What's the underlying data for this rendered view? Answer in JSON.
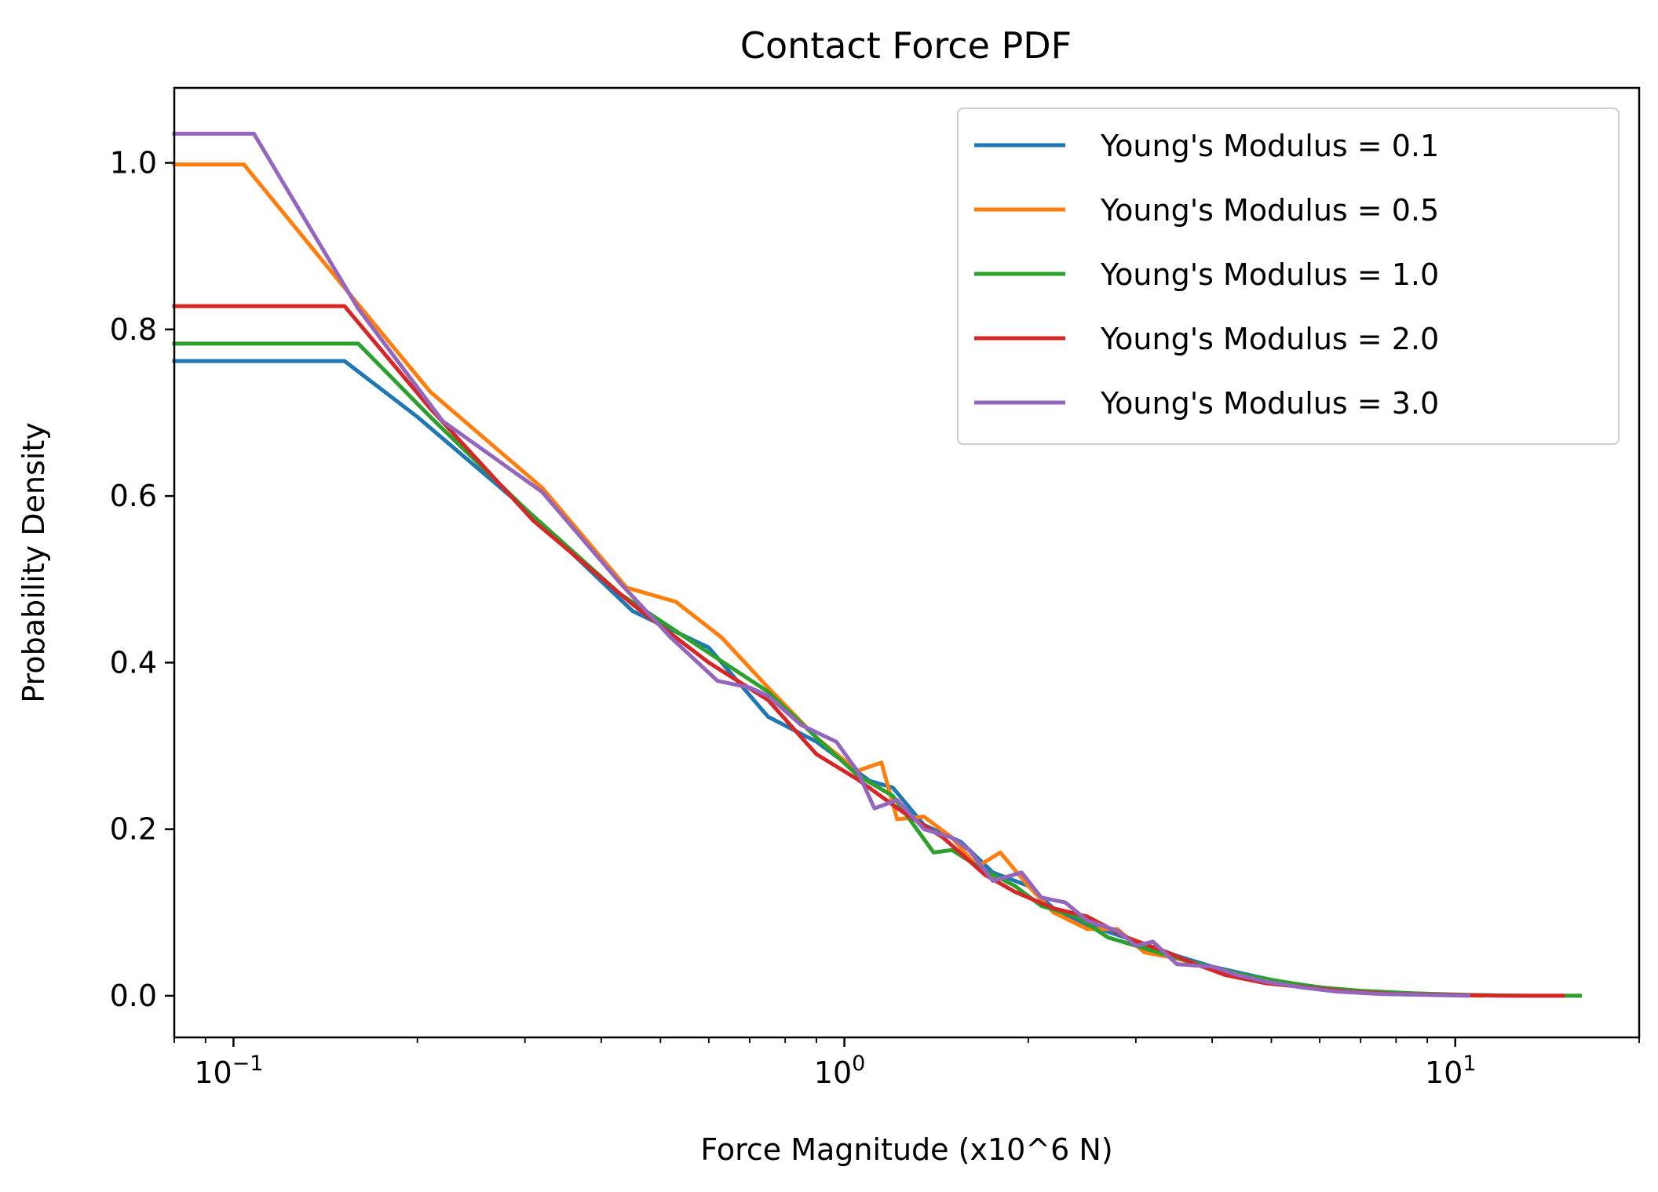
{
  "chart_data": {
    "type": "line",
    "title": "Contact Force PDF",
    "xlabel": "Force Magnitude (x10^6 N)",
    "ylabel": "Probability Density",
    "xscale": "log",
    "xlim": [
      0.08,
      20
    ],
    "ylim": [
      -0.05,
      1.09
    ],
    "grid": false,
    "legend_position": "top-right",
    "x_ticks": [
      {
        "value": 0.1,
        "base": "10",
        "exp": "−1"
      },
      {
        "value": 1,
        "base": "10",
        "exp": "0"
      },
      {
        "value": 10,
        "base": "10",
        "exp": "1"
      }
    ],
    "y_ticks": [
      {
        "value": 0.0,
        "label": "0.0"
      },
      {
        "value": 0.2,
        "label": "0.2"
      },
      {
        "value": 0.4,
        "label": "0.4"
      },
      {
        "value": 0.6,
        "label": "0.6"
      },
      {
        "value": 0.8,
        "label": "0.8"
      },
      {
        "value": 1.0,
        "label": "1.0"
      }
    ],
    "series": [
      {
        "name": "Young's Modulus = 0.1",
        "color": "#1f77b4",
        "points": [
          [
            0.08,
            0.762
          ],
          [
            0.152,
            0.762
          ],
          [
            0.2,
            0.695
          ],
          [
            0.3,
            0.585
          ],
          [
            0.45,
            0.462
          ],
          [
            0.6,
            0.418
          ],
          [
            0.75,
            0.335
          ],
          [
            0.9,
            0.305
          ],
          [
            1.1,
            0.258
          ],
          [
            1.2,
            0.25
          ],
          [
            1.35,
            0.205
          ],
          [
            1.55,
            0.185
          ],
          [
            1.75,
            0.148
          ],
          [
            2.0,
            0.132
          ],
          [
            2.2,
            0.105
          ],
          [
            2.5,
            0.085
          ],
          [
            2.8,
            0.073
          ],
          [
            3.1,
            0.062
          ],
          [
            3.5,
            0.048
          ],
          [
            4.0,
            0.035
          ],
          [
            4.6,
            0.025
          ],
          [
            5.3,
            0.015
          ],
          [
            6.2,
            0.009
          ],
          [
            7.2,
            0.005
          ],
          [
            8.5,
            0.002
          ],
          [
            10.5,
            0.001
          ]
        ]
      },
      {
        "name": "Young's Modulus = 0.5",
        "color": "#ff7f0e",
        "points": [
          [
            0.08,
            0.998
          ],
          [
            0.104,
            0.998
          ],
          [
            0.16,
            0.83
          ],
          [
            0.21,
            0.725
          ],
          [
            0.32,
            0.61
          ],
          [
            0.44,
            0.49
          ],
          [
            0.53,
            0.473
          ],
          [
            0.63,
            0.43
          ],
          [
            0.75,
            0.37
          ],
          [
            0.9,
            0.31
          ],
          [
            1.05,
            0.27
          ],
          [
            1.15,
            0.28
          ],
          [
            1.22,
            0.212
          ],
          [
            1.35,
            0.215
          ],
          [
            1.5,
            0.19
          ],
          [
            1.65,
            0.155
          ],
          [
            1.8,
            0.172
          ],
          [
            2.0,
            0.132
          ],
          [
            2.2,
            0.1
          ],
          [
            2.5,
            0.08
          ],
          [
            2.8,
            0.08
          ],
          [
            3.1,
            0.052
          ],
          [
            3.5,
            0.045
          ],
          [
            4.0,
            0.032
          ],
          [
            4.7,
            0.022
          ],
          [
            5.5,
            0.013
          ],
          [
            6.5,
            0.007
          ],
          [
            7.8,
            0.003
          ],
          [
            9.5,
            0.001
          ],
          [
            11,
            0.0
          ]
        ]
      },
      {
        "name": "Young's Modulus = 1.0",
        "color": "#2ca02c",
        "points": [
          [
            0.08,
            0.783
          ],
          [
            0.16,
            0.783
          ],
          [
            0.21,
            0.695
          ],
          [
            0.3,
            0.585
          ],
          [
            0.43,
            0.482
          ],
          [
            0.55,
            0.43
          ],
          [
            0.65,
            0.395
          ],
          [
            0.75,
            0.365
          ],
          [
            0.9,
            0.31
          ],
          [
            1.05,
            0.265
          ],
          [
            1.2,
            0.24
          ],
          [
            1.4,
            0.172
          ],
          [
            1.5,
            0.175
          ],
          [
            1.7,
            0.15
          ],
          [
            1.9,
            0.132
          ],
          [
            2.1,
            0.108
          ],
          [
            2.4,
            0.095
          ],
          [
            2.7,
            0.07
          ],
          [
            3.0,
            0.06
          ],
          [
            3.4,
            0.048
          ],
          [
            3.9,
            0.036
          ],
          [
            4.5,
            0.025
          ],
          [
            5.2,
            0.017
          ],
          [
            6.0,
            0.01
          ],
          [
            7.0,
            0.006
          ],
          [
            8.5,
            0.003
          ],
          [
            10.5,
            0.001
          ],
          [
            13,
            0.0
          ],
          [
            16,
            0.0
          ]
        ]
      },
      {
        "name": "Young's Modulus = 2.0",
        "color": "#d62728",
        "points": [
          [
            0.08,
            0.828
          ],
          [
            0.152,
            0.828
          ],
          [
            0.21,
            0.705
          ],
          [
            0.31,
            0.57
          ],
          [
            0.45,
            0.47
          ],
          [
            0.6,
            0.4
          ],
          [
            0.75,
            0.355
          ],
          [
            0.9,
            0.29
          ],
          [
            1.05,
            0.26
          ],
          [
            1.25,
            0.22
          ],
          [
            1.45,
            0.19
          ],
          [
            1.7,
            0.145
          ],
          [
            1.9,
            0.125
          ],
          [
            2.2,
            0.105
          ],
          [
            2.5,
            0.095
          ],
          [
            2.9,
            0.07
          ],
          [
            3.3,
            0.055
          ],
          [
            3.7,
            0.04
          ],
          [
            4.2,
            0.025
          ],
          [
            4.9,
            0.015
          ],
          [
            5.7,
            0.01
          ],
          [
            6.7,
            0.005
          ],
          [
            8.0,
            0.002
          ],
          [
            10,
            0.001
          ],
          [
            12,
            0.0
          ],
          [
            15,
            0.0
          ]
        ]
      },
      {
        "name": "Young's Modulus = 3.0",
        "color": "#9467bd",
        "points": [
          [
            0.08,
            1.035
          ],
          [
            0.108,
            1.035
          ],
          [
            0.16,
            0.825
          ],
          [
            0.22,
            0.69
          ],
          [
            0.32,
            0.605
          ],
          [
            0.43,
            0.495
          ],
          [
            0.52,
            0.43
          ],
          [
            0.62,
            0.378
          ],
          [
            0.7,
            0.37
          ],
          [
            0.75,
            0.36
          ],
          [
            0.85,
            0.325
          ],
          [
            0.97,
            0.305
          ],
          [
            1.05,
            0.27
          ],
          [
            1.12,
            0.225
          ],
          [
            1.22,
            0.235
          ],
          [
            1.35,
            0.2
          ],
          [
            1.5,
            0.19
          ],
          [
            1.6,
            0.175
          ],
          [
            1.75,
            0.138
          ],
          [
            1.95,
            0.148
          ],
          [
            2.1,
            0.118
          ],
          [
            2.3,
            0.112
          ],
          [
            2.5,
            0.09
          ],
          [
            2.8,
            0.078
          ],
          [
            3.0,
            0.06
          ],
          [
            3.2,
            0.065
          ],
          [
            3.5,
            0.038
          ],
          [
            4.0,
            0.035
          ],
          [
            4.4,
            0.025
          ],
          [
            4.9,
            0.017
          ],
          [
            5.6,
            0.01
          ],
          [
            6.4,
            0.005
          ],
          [
            7.6,
            0.002
          ],
          [
            9.0,
            0.001
          ],
          [
            10.5,
            0.0
          ]
        ]
      }
    ]
  }
}
